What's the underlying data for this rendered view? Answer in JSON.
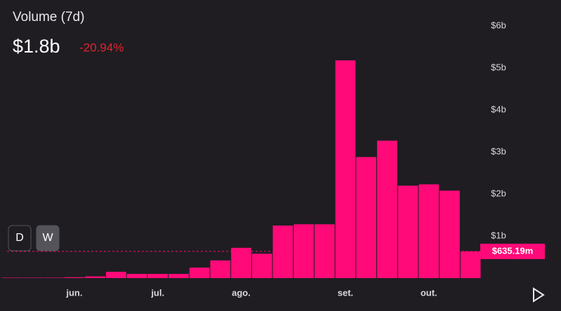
{
  "chart_data": {
    "type": "bar",
    "title": "Volume (7d)",
    "headline_value": "$1.8b",
    "change": "-20.94%",
    "interval_buttons": [
      "D",
      "W"
    ],
    "categories": [
      null,
      null,
      null,
      "jun.",
      null,
      null,
      null,
      "jul.",
      null,
      null,
      null,
      "ago.",
      null,
      null,
      null,
      null,
      "set.",
      null,
      null,
      null,
      "out.",
      null,
      null
    ],
    "values": [
      0.01,
      0.01,
      0.01,
      0.02,
      0.04,
      0.15,
      0.1,
      0.1,
      0.1,
      0.25,
      0.42,
      0.72,
      0.58,
      1.25,
      1.28,
      1.28,
      5.18,
      2.88,
      3.27,
      2.2,
      2.23,
      2.08,
      0.63519
    ],
    "color": "#ff0a78",
    "ylim": [
      0,
      6.6
    ],
    "yticks": [
      {
        "value": 1,
        "label": "$1b"
      },
      {
        "value": 2,
        "label": "$2b"
      },
      {
        "value": 3,
        "label": "$3b"
      },
      {
        "value": 4,
        "label": "$4b"
      },
      {
        "value": 5,
        "label": "$5b"
      },
      {
        "value": 6,
        "label": "$6b"
      }
    ],
    "last_value": {
      "value": 0.63519,
      "label": "$635.19m"
    }
  }
}
